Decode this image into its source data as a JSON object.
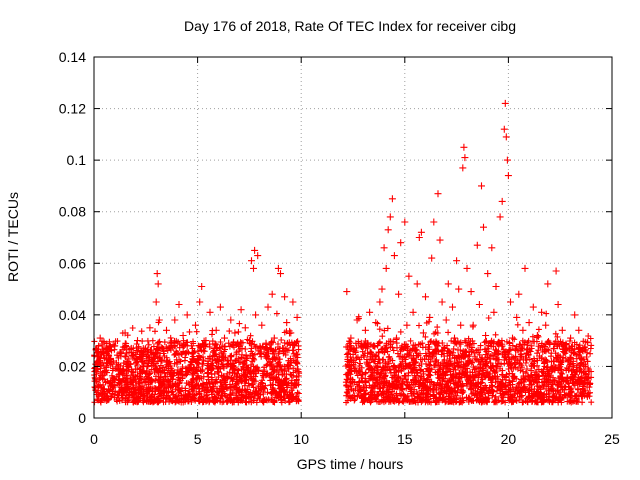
{
  "chart_data": {
    "type": "scatter",
    "title": "Day 176 of 2018, Rate Of TEC Index for receiver cibg",
    "xlabel": "GPS time / hours",
    "ylabel": "ROTI / TECUs",
    "xlim": [
      0,
      25
    ],
    "ylim": [
      0,
      0.14
    ],
    "xticks": [
      0,
      5,
      10,
      15,
      20,
      25
    ],
    "xtick_labels": [
      "0",
      "5",
      "10",
      "15",
      "20",
      "25"
    ],
    "yticks": [
      0,
      0.02,
      0.04,
      0.06,
      0.08,
      0.1,
      0.12,
      0.14
    ],
    "ytick_labels": [
      "0",
      "0.02",
      "0.04",
      "0.06",
      "0.08",
      "0.1",
      "0.12",
      "0.14"
    ],
    "grid": true,
    "marker": "+",
    "color": "#ff0000",
    "series": [
      {
        "name": "ROTI",
        "points": [
          [
            0.05,
            0.012
          ],
          [
            0.15,
            0.02
          ],
          [
            0.25,
            0.015
          ],
          [
            0.3,
            0.031
          ],
          [
            0.4,
            0.009
          ],
          [
            0.5,
            0.018
          ],
          [
            0.6,
            0.025
          ],
          [
            0.7,
            0.011
          ],
          [
            0.8,
            0.022
          ],
          [
            0.9,
            0.014
          ],
          [
            1.0,
            0.028
          ],
          [
            1.1,
            0.016
          ],
          [
            1.2,
            0.01
          ],
          [
            1.3,
            0.024
          ],
          [
            1.4,
            0.019
          ],
          [
            1.5,
            0.033
          ],
          [
            1.6,
            0.013
          ],
          [
            1.7,
            0.021
          ],
          [
            1.8,
            0.027
          ],
          [
            1.9,
            0.012
          ],
          [
            2.0,
            0.019
          ],
          [
            2.1,
            0.03
          ],
          [
            2.2,
            0.015
          ],
          [
            2.3,
            0.023
          ],
          [
            2.4,
            0.011
          ],
          [
            2.5,
            0.026
          ],
          [
            2.6,
            0.017
          ],
          [
            2.7,
            0.035
          ],
          [
            2.8,
            0.014
          ],
          [
            2.9,
            0.022
          ],
          [
            3.0,
            0.045
          ],
          [
            3.05,
            0.056
          ],
          [
            3.1,
            0.052
          ],
          [
            3.15,
            0.038
          ],
          [
            3.2,
            0.018
          ],
          [
            3.3,
            0.027
          ],
          [
            3.4,
            0.012
          ],
          [
            3.5,
            0.034
          ],
          [
            3.6,
            0.02
          ],
          [
            3.7,
            0.029
          ],
          [
            3.8,
            0.015
          ],
          [
            3.9,
            0.038
          ],
          [
            4.0,
            0.021
          ],
          [
            4.1,
            0.044
          ],
          [
            4.2,
            0.017
          ],
          [
            4.3,
            0.032
          ],
          [
            4.4,
            0.025
          ],
          [
            4.5,
            0.04
          ],
          [
            4.6,
            0.013
          ],
          [
            4.7,
            0.028
          ],
          [
            4.8,
            0.019
          ],
          [
            4.9,
            0.036
          ],
          [
            5.0,
            0.023
          ],
          [
            5.1,
            0.045
          ],
          [
            5.2,
            0.051
          ],
          [
            5.3,
            0.016
          ],
          [
            5.4,
            0.03
          ],
          [
            5.5,
            0.022
          ],
          [
            5.6,
            0.041
          ],
          [
            5.7,
            0.014
          ],
          [
            5.8,
            0.027
          ],
          [
            5.9,
            0.034
          ],
          [
            6.0,
            0.019
          ],
          [
            6.1,
            0.043
          ],
          [
            6.2,
            0.024
          ],
          [
            6.3,
            0.031
          ],
          [
            6.4,
            0.012
          ],
          [
            6.5,
            0.029
          ],
          [
            6.6,
            0.038
          ],
          [
            6.7,
            0.02
          ],
          [
            6.8,
            0.033
          ],
          [
            6.9,
            0.016
          ],
          [
            7.0,
            0.026
          ],
          [
            7.1,
            0.042
          ],
          [
            7.2,
            0.021
          ],
          [
            7.3,
            0.035
          ],
          [
            7.4,
            0.011
          ],
          [
            7.5,
            0.03
          ],
          [
            7.6,
            0.061
          ],
          [
            7.7,
            0.058
          ],
          [
            7.75,
            0.065
          ],
          [
            7.8,
            0.04
          ],
          [
            7.9,
            0.063
          ],
          [
            8.0,
            0.025
          ],
          [
            8.1,
            0.036
          ],
          [
            8.2,
            0.018
          ],
          [
            8.3,
            0.029
          ],
          [
            8.4,
            0.043
          ],
          [
            8.5,
            0.022
          ],
          [
            8.6,
            0.048
          ],
          [
            8.7,
            0.031
          ],
          [
            8.8,
            0.015
          ],
          [
            8.9,
            0.058
          ],
          [
            9.0,
            0.056
          ],
          [
            9.1,
            0.027
          ],
          [
            9.2,
            0.047
          ],
          [
            9.3,
            0.037
          ],
          [
            9.4,
            0.019
          ],
          [
            9.5,
            0.033
          ],
          [
            9.6,
            0.045
          ],
          [
            9.7,
            0.024
          ],
          [
            9.8,
            0.039
          ],
          [
            9.85,
            0.018
          ],
          [
            12.2,
            0.049
          ],
          [
            12.3,
            0.02
          ],
          [
            12.4,
            0.031
          ],
          [
            12.5,
            0.014
          ],
          [
            12.6,
            0.026
          ],
          [
            12.7,
            0.038
          ],
          [
            12.8,
            0.018
          ],
          [
            12.9,
            0.029
          ],
          [
            13.0,
            0.012
          ],
          [
            13.1,
            0.034
          ],
          [
            13.2,
            0.021
          ],
          [
            13.3,
            0.041
          ],
          [
            13.4,
            0.016
          ],
          [
            13.5,
            0.028
          ],
          [
            13.6,
            0.037
          ],
          [
            13.7,
            0.02
          ],
          [
            13.8,
            0.045
          ],
          [
            13.9,
            0.05
          ],
          [
            14.0,
            0.066
          ],
          [
            14.1,
            0.058
          ],
          [
            14.2,
            0.073
          ],
          [
            14.3,
            0.078
          ],
          [
            14.4,
            0.085
          ],
          [
            14.5,
            0.063
          ],
          [
            14.6,
            0.031
          ],
          [
            14.7,
            0.048
          ],
          [
            14.8,
            0.068
          ],
          [
            14.9,
            0.022
          ],
          [
            15.0,
            0.076
          ],
          [
            15.1,
            0.036
          ],
          [
            15.2,
            0.055
          ],
          [
            15.3,
            0.019
          ],
          [
            15.4,
            0.041
          ],
          [
            15.5,
            0.028
          ],
          [
            15.6,
            0.052
          ],
          [
            15.7,
            0.07
          ],
          [
            15.8,
            0.072
          ],
          [
            15.9,
            0.033
          ],
          [
            16.0,
            0.047
          ],
          [
            16.1,
            0.015
          ],
          [
            16.2,
            0.039
          ],
          [
            16.3,
            0.062
          ],
          [
            16.4,
            0.076
          ],
          [
            16.5,
            0.029
          ],
          [
            16.6,
            0.087
          ],
          [
            16.7,
            0.069
          ],
          [
            16.8,
            0.045
          ],
          [
            16.9,
            0.024
          ],
          [
            17.0,
            0.038
          ],
          [
            17.1,
            0.052
          ],
          [
            17.2,
            0.018
          ],
          [
            17.3,
            0.043
          ],
          [
            17.4,
            0.031
          ],
          [
            17.5,
            0.061
          ],
          [
            17.6,
            0.05
          ],
          [
            17.7,
            0.036
          ],
          [
            17.8,
            0.097
          ],
          [
            17.85,
            0.105
          ],
          [
            17.9,
            0.101
          ],
          [
            18.0,
            0.058
          ],
          [
            18.1,
            0.028
          ],
          [
            18.2,
            0.049
          ],
          [
            18.3,
            0.036
          ],
          [
            18.4,
            0.019
          ],
          [
            18.5,
            0.067
          ],
          [
            18.6,
            0.044
          ],
          [
            18.7,
            0.09
          ],
          [
            18.8,
            0.074
          ],
          [
            18.9,
            0.032
          ],
          [
            19.0,
            0.056
          ],
          [
            19.1,
            0.023
          ],
          [
            19.2,
            0.066
          ],
          [
            19.3,
            0.041
          ],
          [
            19.4,
            0.051
          ],
          [
            19.5,
            0.029
          ],
          [
            19.6,
            0.078
          ],
          [
            19.7,
            0.084
          ],
          [
            19.8,
            0.112
          ],
          [
            19.85,
            0.122
          ],
          [
            19.9,
            0.109
          ],
          [
            19.95,
            0.1
          ],
          [
            20.0,
            0.094
          ],
          [
            20.1,
            0.045
          ],
          [
            20.2,
            0.031
          ],
          [
            20.3,
            0.021
          ],
          [
            20.4,
            0.039
          ],
          [
            20.5,
            0.048
          ],
          [
            20.6,
            0.026
          ],
          [
            20.7,
            0.034
          ],
          [
            20.8,
            0.058
          ],
          [
            20.9,
            0.019
          ],
          [
            21.0,
            0.037
          ],
          [
            21.1,
            0.028
          ],
          [
            21.2,
            0.043
          ],
          [
            21.3,
            0.015
          ],
          [
            21.4,
            0.032
          ],
          [
            21.5,
            0.024
          ],
          [
            21.6,
            0.041
          ],
          [
            21.7,
            0.018
          ],
          [
            21.8,
            0.036
          ],
          [
            21.9,
            0.052
          ],
          [
            22.0,
            0.029
          ],
          [
            22.1,
            0.013
          ],
          [
            22.2,
            0.027
          ],
          [
            22.3,
            0.057
          ],
          [
            22.4,
            0.044
          ],
          [
            22.5,
            0.022
          ],
          [
            22.6,
            0.034
          ],
          [
            22.7,
            0.011
          ],
          [
            22.8,
            0.026
          ],
          [
            22.9,
            0.019
          ],
          [
            23.0,
            0.031
          ],
          [
            23.1,
            0.016
          ],
          [
            23.2,
            0.04
          ],
          [
            23.3,
            0.023
          ],
          [
            23.4,
            0.034
          ],
          [
            23.5,
            0.014
          ],
          [
            23.6,
            0.027
          ],
          [
            23.7,
            0.02
          ],
          [
            23.8,
            0.012
          ],
          [
            23.9,
            0.018
          ]
        ]
      }
    ]
  }
}
